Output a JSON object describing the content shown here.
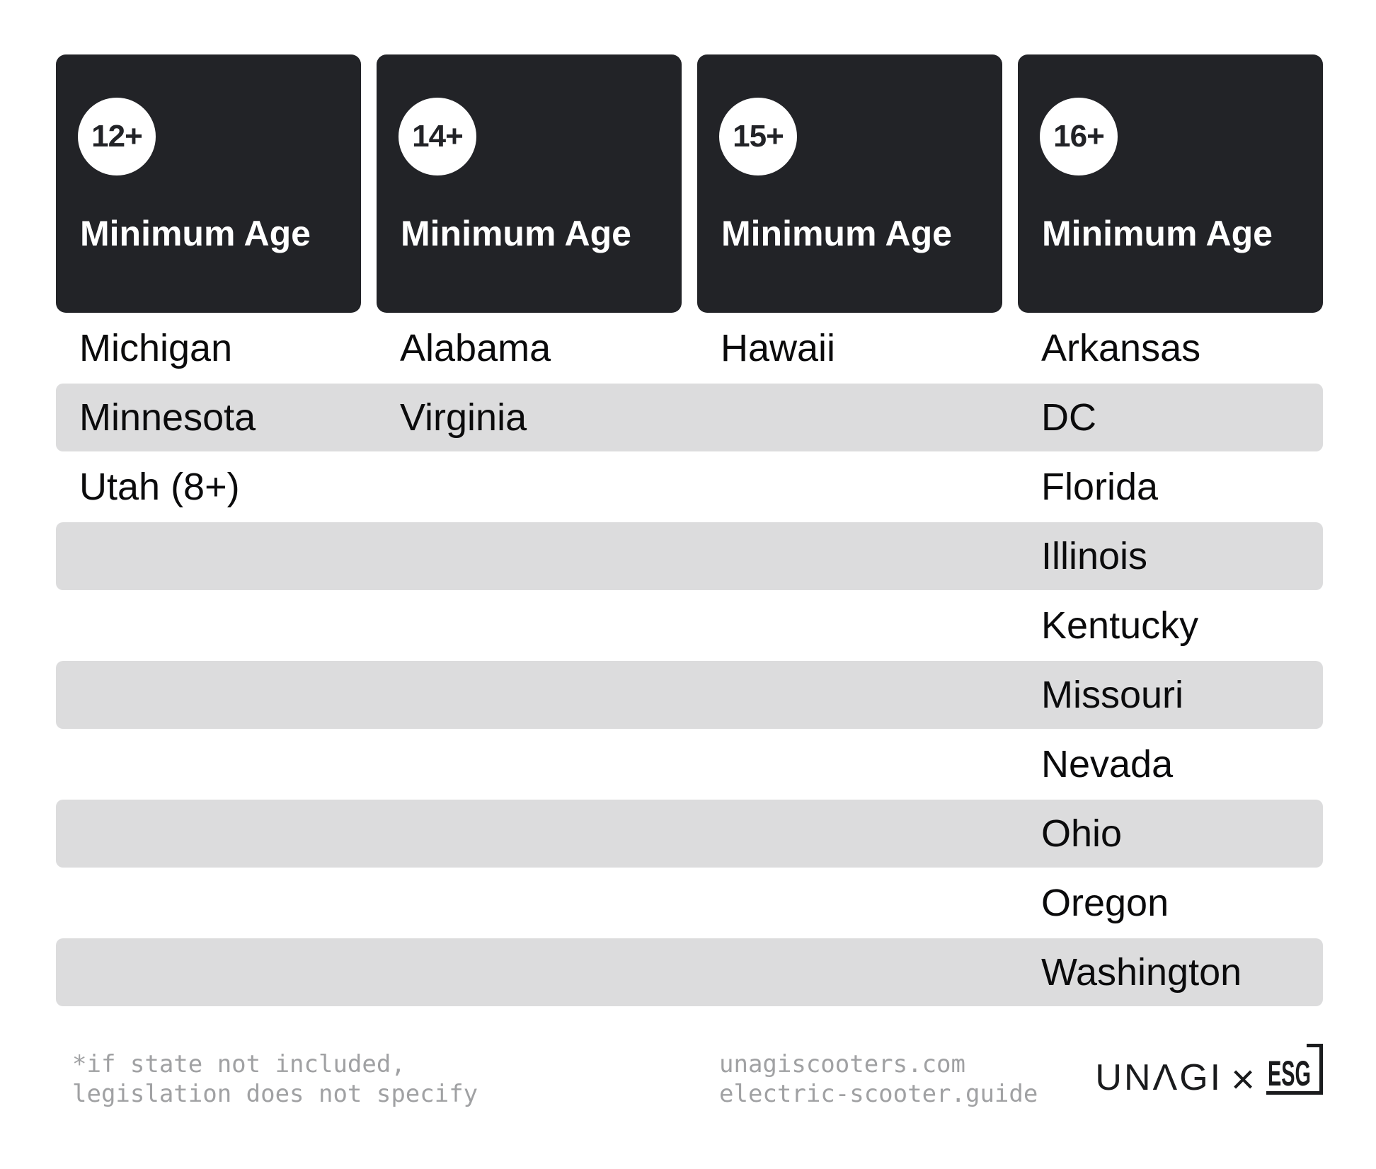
{
  "columns": [
    {
      "age_badge": "12+",
      "header": "Minimum Age",
      "states": [
        "Michigan",
        "Minnesota",
        "Utah (8+)"
      ]
    },
    {
      "age_badge": "14+",
      "header": "Minimum Age",
      "states": [
        "Alabama",
        "Virginia"
      ]
    },
    {
      "age_badge": "15+",
      "header": "Minimum Age",
      "states": [
        "Hawaii"
      ]
    },
    {
      "age_badge": "16+",
      "header": "Minimum Age",
      "states": [
        "Arkansas",
        "DC",
        "Florida",
        "Illinois",
        "Kentucky",
        "Missouri",
        "Nevada",
        "Ohio",
        "Oregon",
        "Washington"
      ]
    }
  ],
  "chart_data": {
    "type": "table",
    "title": "Electric scooter minimum riding age by state",
    "categories": [
      "12+ Minimum Age",
      "14+ Minimum Age",
      "15+ Minimum Age",
      "16+ Minimum Age"
    ],
    "series": [
      {
        "name": "12+",
        "values": [
          "Michigan",
          "Minnesota",
          "Utah (8+)"
        ]
      },
      {
        "name": "14+",
        "values": [
          "Alabama",
          "Virginia"
        ]
      },
      {
        "name": "15+",
        "values": [
          "Hawaii"
        ]
      },
      {
        "name": "16+",
        "values": [
          "Arkansas",
          "DC",
          "Florida",
          "Illinois",
          "Kentucky",
          "Missouri",
          "Nevada",
          "Ohio",
          "Oregon",
          "Washington"
        ]
      }
    ]
  },
  "footer": {
    "note_line1": "*if state not included,",
    "note_line2": "legislation does not specify",
    "site_line1": "unagiscooters.com",
    "site_line2": "electric-scooter.guide",
    "brand_left": "UNΛGI",
    "brand_separator": "×",
    "brand_right": "ESG"
  },
  "colors": {
    "page_bg": "#ffffff",
    "card_bg": "#222327",
    "badge_bg": "#ffffff",
    "badge_text": "#222327",
    "card_title": "#ffffff",
    "state_text": "#0b0b0c",
    "band_bg": "#dcdcdd",
    "muted_text": "#a0a1a3",
    "brand_color": "#1a1b1d"
  }
}
